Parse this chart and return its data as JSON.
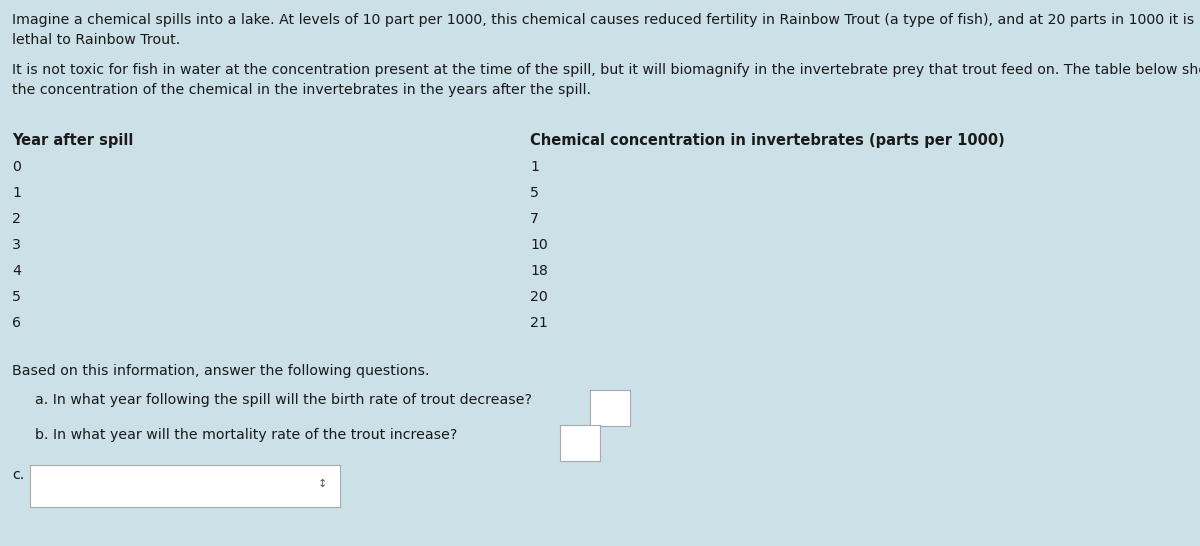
{
  "background_color": "#cce0e8",
  "text_color": "#1a1a1a",
  "paragraph1_line1": "Imagine a chemical spills into a lake. At levels of 10 part per 1000, this chemical causes reduced fertility in Rainbow Trout (a type of fish), and at 20 parts in 1000 it is",
  "paragraph1_line2": "lethal to Rainbow Trout.",
  "paragraph2_line1": "It is not toxic for fish in water at the concentration present at the time of the spill, but it will biomagnify in the invertebrate prey that trout feed on. The table below shows",
  "paragraph2_line2": "the concentration of the chemical in the invertebrates in the years after the spill.",
  "col1_header": "Year after spill",
  "col2_header": "Chemical concentration in invertebrates (parts per 1000)",
  "table_years": [
    "0",
    "1",
    "2",
    "3",
    "4",
    "5",
    "6"
  ],
  "table_concs": [
    "1",
    "5",
    "7",
    "10",
    "18",
    "20",
    "21"
  ],
  "based_text": "Based on this information, answer the following questions.",
  "question_a": "a. In what year following the spill will the birth rate of trout decrease?",
  "question_b": "b. In what year will the mortality rate of the trout increase?",
  "question_c": "c.",
  "fig_width": 12.0,
  "fig_height": 5.46,
  "dpi": 100
}
